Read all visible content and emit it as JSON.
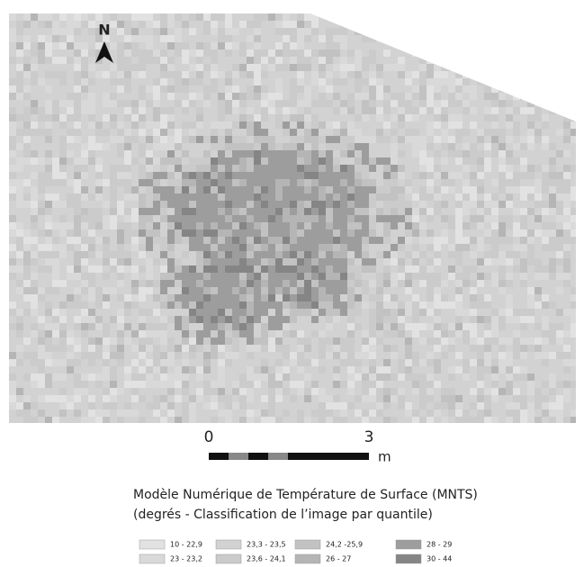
{
  "north": "N",
  "scale_bar": {
    "labels": [
      "0",
      "3"
    ],
    "unit": "m"
  },
  "title": [
    "Modèle Numérique de Température de Surface (MNTS)",
    "(degrés - Classification de l’image par quantile)"
  ],
  "legend": [
    {
      "label": "10 - 22,9",
      "color": "#e2e2e2"
    },
    {
      "label": "23 - 23,2",
      "color": "#d9d9d9"
    },
    {
      "label": "23,3 - 23,5",
      "color": "#d2d2d2"
    },
    {
      "label": "23,6 - 24,1",
      "color": "#cbcbcb"
    },
    {
      "label": "24,2 -25,9",
      "color": "#c2c2c2"
    },
    {
      "label": "26 - 27",
      "color": "#b5b5b5"
    },
    {
      "label": "28 - 29",
      "color": "#9d9d9d"
    },
    {
      "label": "30 - 44",
      "color": "#858585"
    }
  ]
}
